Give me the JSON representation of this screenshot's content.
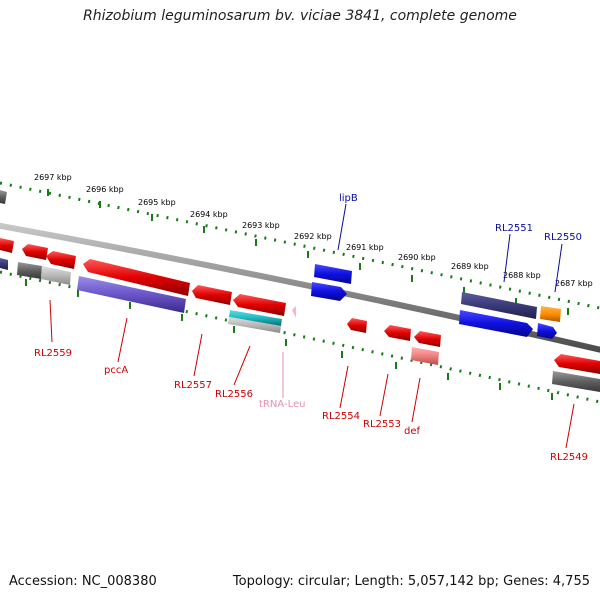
{
  "title": "Rhizobium leguminosarum bv. viciae 3841, complete genome",
  "footer": {
    "accession": "Accession: NC_008380",
    "summary": "Topology: circular; Length: 5,057,142 bp; Genes: 4,755"
  },
  "ticks": [
    {
      "label": "2697 kbp"
    },
    {
      "label": "2696 kbp"
    },
    {
      "label": "2695 kbp"
    },
    {
      "label": "2694 kbp"
    },
    {
      "label": "2693 kbp"
    },
    {
      "label": "2692 kbp"
    },
    {
      "label": "2691 kbp"
    },
    {
      "label": "2690 kbp"
    },
    {
      "label": "2689 kbp"
    },
    {
      "label": "2688 kbp"
    },
    {
      "label": "2687 kbp"
    }
  ],
  "genes_top": [
    {
      "label": "lipB",
      "color": "#0b0b9a"
    },
    {
      "label": "RL2551",
      "color": "#0b0b9a"
    },
    {
      "label": "RL2550",
      "color": "#0b0b9a"
    }
  ],
  "genes_bottom": [
    {
      "label": "RL2559",
      "color": "#cc0000"
    },
    {
      "label": "pccA",
      "color": "#cc0000"
    },
    {
      "label": "RL2557",
      "color": "#cc0000"
    },
    {
      "label": "RL2556",
      "color": "#cc0000"
    },
    {
      "label": "tRNA-Leu",
      "color": "#e58fb0"
    },
    {
      "label": "RL2554",
      "color": "#cc0000"
    },
    {
      "label": "RL2553",
      "color": "#cc0000"
    },
    {
      "label": "def",
      "color": "#cc0000"
    },
    {
      "label": "RL2549",
      "color": "#cc0000"
    }
  ],
  "colors": {
    "backbone": "#8a8a8a",
    "tick_marks": "#1a7a1a",
    "cds_forward": "#1010e0",
    "cds_reverse": "#e00000",
    "rna": "#6a55c8",
    "trna": "#20b8c0",
    "pseudo": "#606060",
    "other": "#ff8c00"
  }
}
